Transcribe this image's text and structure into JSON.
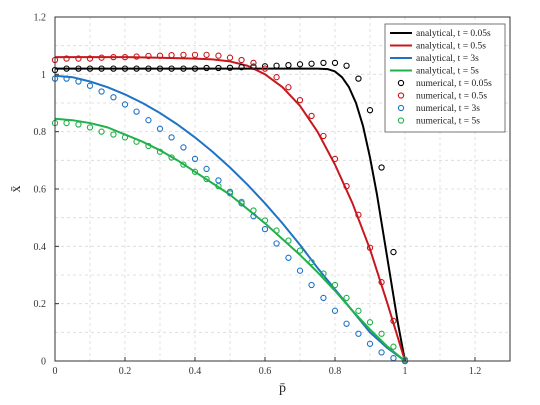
{
  "chart_data": {
    "type": "line",
    "xlabel": "p̄",
    "ylabel": "x̄",
    "xlim": [
      0,
      1.3
    ],
    "ylim": [
      0,
      1.2
    ],
    "xticks": [
      "0",
      "0.2",
      "0.4",
      "0.6",
      "0.8",
      "1",
      "1.2"
    ],
    "yticks": [
      "0",
      "0.2",
      "0.4",
      "0.6",
      "0.8",
      "1",
      "1.2"
    ],
    "grid": true,
    "legend_position": "top-right",
    "series": [
      {
        "name": "analytical, t = 0.05s",
        "kind": "line",
        "color": "#000000",
        "x": [
          0,
          0.2,
          0.4,
          0.6,
          0.7,
          0.75,
          0.78,
          0.8,
          0.82,
          0.84,
          0.86,
          0.88,
          0.9,
          0.92,
          0.94,
          0.96,
          0.98,
          1.0
        ],
        "y": [
          1.02,
          1.02,
          1.02,
          1.02,
          1.02,
          1.02,
          1.018,
          1.01,
          0.99,
          0.955,
          0.9,
          0.82,
          0.71,
          0.58,
          0.43,
          0.28,
          0.13,
          0.0
        ]
      },
      {
        "name": "analytical, t = 0.5s",
        "kind": "line",
        "color": "#c8171d",
        "x": [
          0,
          0.1,
          0.2,
          0.3,
          0.4,
          0.45,
          0.5,
          0.55,
          0.6,
          0.65,
          0.7,
          0.75,
          0.8,
          0.85,
          0.9,
          0.95,
          1.0
        ],
        "y": [
          1.06,
          1.06,
          1.06,
          1.058,
          1.055,
          1.052,
          1.045,
          1.03,
          1.0,
          0.955,
          0.89,
          0.8,
          0.685,
          0.55,
          0.39,
          0.2,
          0.0
        ]
      },
      {
        "name": "analytical, t = 3s",
        "kind": "line",
        "color": "#1f73c6",
        "x": [
          0,
          0.05,
          0.1,
          0.15,
          0.2,
          0.25,
          0.3,
          0.35,
          0.4,
          0.45,
          0.5,
          0.55,
          0.6,
          0.65,
          0.7,
          0.75,
          0.8,
          0.85,
          0.9,
          0.95,
          1.0
        ],
        "y": [
          0.995,
          0.99,
          0.975,
          0.955,
          0.93,
          0.9,
          0.865,
          0.825,
          0.78,
          0.73,
          0.675,
          0.615,
          0.55,
          0.48,
          0.405,
          0.325,
          0.25,
          0.175,
          0.1,
          0.045,
          0.0
        ]
      },
      {
        "name": "analytical, t = 5s",
        "kind": "line",
        "color": "#22b04b",
        "x": [
          0,
          0.05,
          0.1,
          0.15,
          0.2,
          0.25,
          0.3,
          0.35,
          0.4,
          0.45,
          0.5,
          0.55,
          0.6,
          0.65,
          0.7,
          0.75,
          0.8,
          0.85,
          0.9,
          0.95,
          1.0
        ],
        "y": [
          0.845,
          0.84,
          0.83,
          0.815,
          0.79,
          0.765,
          0.735,
          0.7,
          0.66,
          0.62,
          0.58,
          0.53,
          0.48,
          0.425,
          0.37,
          0.31,
          0.245,
          0.175,
          0.11,
          0.05,
          0.0
        ]
      },
      {
        "name": "numerical, t = 0.05s",
        "kind": "markers",
        "color": "#000000",
        "x": [
          0,
          0.033,
          0.067,
          0.1,
          0.133,
          0.167,
          0.2,
          0.233,
          0.267,
          0.3,
          0.333,
          0.367,
          0.4,
          0.433,
          0.467,
          0.5,
          0.533,
          0.567,
          0.6,
          0.633,
          0.667,
          0.7,
          0.733,
          0.767,
          0.8,
          0.833,
          0.867,
          0.9,
          0.933,
          0.967,
          1.0
        ],
        "y": [
          1.015,
          1.02,
          1.02,
          1.02,
          1.02,
          1.02,
          1.02,
          1.02,
          1.02,
          1.02,
          1.02,
          1.02,
          1.02,
          1.022,
          1.022,
          1.023,
          1.025,
          1.027,
          1.028,
          1.03,
          1.032,
          1.035,
          1.037,
          1.04,
          1.04,
          1.03,
          0.985,
          0.875,
          0.675,
          0.38,
          0.0
        ]
      },
      {
        "name": "numerical, t = 0.5s",
        "kind": "markers",
        "color": "#c8171d",
        "x": [
          0,
          0.033,
          0.067,
          0.1,
          0.133,
          0.167,
          0.2,
          0.233,
          0.267,
          0.3,
          0.333,
          0.367,
          0.4,
          0.433,
          0.467,
          0.5,
          0.533,
          0.567,
          0.6,
          0.633,
          0.667,
          0.7,
          0.733,
          0.767,
          0.8,
          0.833,
          0.867,
          0.9,
          0.933,
          0.967,
          1.0
        ],
        "y": [
          1.05,
          1.055,
          1.055,
          1.055,
          1.058,
          1.06,
          1.06,
          1.062,
          1.064,
          1.065,
          1.067,
          1.068,
          1.068,
          1.068,
          1.065,
          1.058,
          1.05,
          1.04,
          1.02,
          0.99,
          0.955,
          0.91,
          0.855,
          0.785,
          0.705,
          0.61,
          0.51,
          0.395,
          0.275,
          0.14,
          0.0
        ]
      },
      {
        "name": "numerical, t = 3s",
        "kind": "markers",
        "color": "#1f73c6",
        "x": [
          0,
          0.033,
          0.067,
          0.1,
          0.133,
          0.167,
          0.2,
          0.233,
          0.267,
          0.3,
          0.333,
          0.367,
          0.4,
          0.433,
          0.467,
          0.5,
          0.533,
          0.567,
          0.6,
          0.633,
          0.667,
          0.7,
          0.733,
          0.767,
          0.8,
          0.833,
          0.867,
          0.9,
          0.933,
          0.967,
          1.0
        ],
        "y": [
          0.985,
          0.985,
          0.975,
          0.96,
          0.94,
          0.92,
          0.895,
          0.87,
          0.84,
          0.81,
          0.78,
          0.745,
          0.705,
          0.67,
          0.63,
          0.59,
          0.55,
          0.505,
          0.46,
          0.41,
          0.36,
          0.315,
          0.265,
          0.22,
          0.175,
          0.13,
          0.095,
          0.06,
          0.03,
          0.01,
          0.0
        ]
      },
      {
        "name": "numerical, t = 5s",
        "kind": "markers",
        "color": "#22b04b",
        "x": [
          0,
          0.033,
          0.067,
          0.1,
          0.133,
          0.167,
          0.2,
          0.233,
          0.267,
          0.3,
          0.333,
          0.367,
          0.4,
          0.433,
          0.467,
          0.5,
          0.533,
          0.567,
          0.6,
          0.633,
          0.667,
          0.7,
          0.733,
          0.767,
          0.8,
          0.833,
          0.867,
          0.9,
          0.933,
          0.967,
          1.0
        ],
        "y": [
          0.83,
          0.83,
          0.825,
          0.815,
          0.8,
          0.79,
          0.78,
          0.765,
          0.75,
          0.73,
          0.71,
          0.685,
          0.66,
          0.635,
          0.61,
          0.585,
          0.555,
          0.525,
          0.49,
          0.455,
          0.42,
          0.385,
          0.345,
          0.305,
          0.265,
          0.22,
          0.175,
          0.135,
          0.095,
          0.05,
          0.005
        ]
      }
    ]
  }
}
